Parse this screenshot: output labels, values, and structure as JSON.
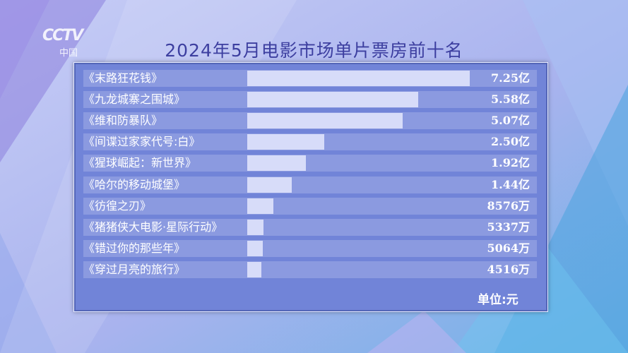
{
  "header": {
    "logo_text": "CCTV",
    "logo_sub": "中国"
  },
  "chart_data": {
    "type": "bar",
    "orientation": "horizontal",
    "title": "2024年5月电影市场单片票房前十名",
    "unit_label": "单位:元",
    "categories": [
      "《末路狂花钱》",
      "《九龙城寨之围城》",
      "《维和防暴队》",
      "《间谍过家家代号:白》",
      "《猩球崛起：新世界》",
      "《哈尔的移动城堡》",
      "《彷徨之刃》",
      "《猪猪侠大电影·星际行动》",
      "《错过你的那些年》",
      "《穿过月亮的旅行》"
    ],
    "labels": [
      "7.25亿",
      "5.58亿",
      "5.07亿",
      "2.50亿",
      "1.92亿",
      "1.44亿",
      "8576万",
      "5337万",
      "5064万",
      "4516万"
    ],
    "values": [
      725000000,
      558000000,
      507000000,
      250000000,
      192000000,
      144000000,
      85760000,
      53370000,
      50640000,
      45160000
    ],
    "xlim": [
      0,
      725000000
    ],
    "colors": {
      "bar": "#d7dcf9",
      "row": "#8b9ae0",
      "panel": "#7184d8",
      "title": "#3d3fa0"
    }
  }
}
